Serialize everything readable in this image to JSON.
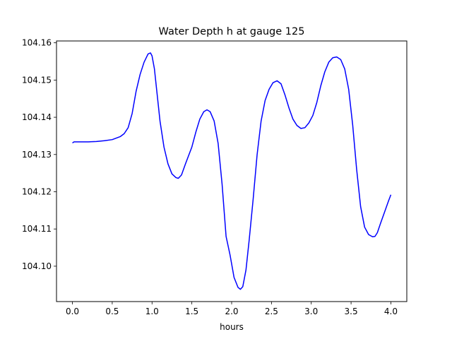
{
  "chart_data": {
    "type": "line",
    "title": "Water Depth h at gauge 125",
    "xlabel": "hours",
    "ylabel": "",
    "xlim": [
      -0.2,
      4.2
    ],
    "ylim": [
      104.0905,
      104.1605
    ],
    "grid": false,
    "xticks": [
      0.0,
      0.5,
      1.0,
      1.5,
      2.0,
      2.5,
      3.0,
      3.5,
      4.0
    ],
    "xtick_labels": [
      "0.0",
      "0.5",
      "1.0",
      "1.5",
      "2.0",
      "2.5",
      "3.0",
      "3.5",
      "4.0"
    ],
    "yticks": [
      104.1,
      104.11,
      104.12,
      104.13,
      104.14,
      104.15,
      104.16
    ],
    "ytick_labels": [
      "104.10",
      "104.11",
      "104.12",
      "104.13",
      "104.14",
      "104.15",
      "104.16"
    ],
    "series": [
      {
        "color": "#0000ff",
        "points": [
          [
            0.0,
            104.1331
          ],
          [
            0.02,
            104.1334
          ],
          [
            0.1,
            104.1334
          ],
          [
            0.2,
            104.1334
          ],
          [
            0.3,
            104.1335
          ],
          [
            0.4,
            104.1337
          ],
          [
            0.5,
            104.134
          ],
          [
            0.6,
            104.1348
          ],
          [
            0.65,
            104.1356
          ],
          [
            0.7,
            104.1372
          ],
          [
            0.75,
            104.141
          ],
          [
            0.8,
            104.147
          ],
          [
            0.85,
            104.1515
          ],
          [
            0.9,
            104.1548
          ],
          [
            0.95,
            104.157
          ],
          [
            0.98,
            104.1573
          ],
          [
            1.0,
            104.1565
          ],
          [
            1.03,
            104.153
          ],
          [
            1.07,
            104.145
          ],
          [
            1.1,
            104.139
          ],
          [
            1.15,
            104.132
          ],
          [
            1.2,
            104.1275
          ],
          [
            1.25,
            104.1248
          ],
          [
            1.3,
            104.1238
          ],
          [
            1.33,
            104.1236
          ],
          [
            1.37,
            104.1245
          ],
          [
            1.42,
            104.1275
          ],
          [
            1.5,
            104.132
          ],
          [
            1.55,
            104.136
          ],
          [
            1.6,
            104.1395
          ],
          [
            1.65,
            104.1415
          ],
          [
            1.69,
            104.142
          ],
          [
            1.73,
            104.1415
          ],
          [
            1.78,
            104.139
          ],
          [
            1.83,
            104.133
          ],
          [
            1.88,
            104.122
          ],
          [
            1.93,
            104.108
          ],
          [
            1.98,
            104.103
          ],
          [
            2.03,
            104.097
          ],
          [
            2.08,
            104.0943
          ],
          [
            2.11,
            104.0938
          ],
          [
            2.14,
            104.0945
          ],
          [
            2.18,
            104.099
          ],
          [
            2.22,
            104.107
          ],
          [
            2.27,
            104.118
          ],
          [
            2.32,
            104.13
          ],
          [
            2.37,
            104.139
          ],
          [
            2.42,
            104.1445
          ],
          [
            2.47,
            104.1475
          ],
          [
            2.52,
            104.1493
          ],
          [
            2.57,
            104.1498
          ],
          [
            2.62,
            104.149
          ],
          [
            2.67,
            104.146
          ],
          [
            2.72,
            104.1425
          ],
          [
            2.77,
            104.1395
          ],
          [
            2.82,
            104.1378
          ],
          [
            2.87,
            104.137
          ],
          [
            2.92,
            104.1372
          ],
          [
            2.97,
            104.1385
          ],
          [
            3.02,
            104.1405
          ],
          [
            3.07,
            104.144
          ],
          [
            3.12,
            104.1485
          ],
          [
            3.17,
            104.1522
          ],
          [
            3.22,
            104.1548
          ],
          [
            3.27,
            104.156
          ],
          [
            3.32,
            104.1562
          ],
          [
            3.37,
            104.1555
          ],
          [
            3.42,
            104.153
          ],
          [
            3.47,
            104.1475
          ],
          [
            3.52,
            104.138
          ],
          [
            3.57,
            104.126
          ],
          [
            3.62,
            104.116
          ],
          [
            3.67,
            104.1105
          ],
          [
            3.72,
            104.1085
          ],
          [
            3.77,
            104.1079
          ],
          [
            3.8,
            104.108
          ],
          [
            3.83,
            104.109
          ],
          [
            3.87,
            104.1115
          ],
          [
            3.92,
            104.1145
          ],
          [
            3.97,
            104.1175
          ],
          [
            4.0,
            104.1192
          ]
        ]
      }
    ]
  }
}
